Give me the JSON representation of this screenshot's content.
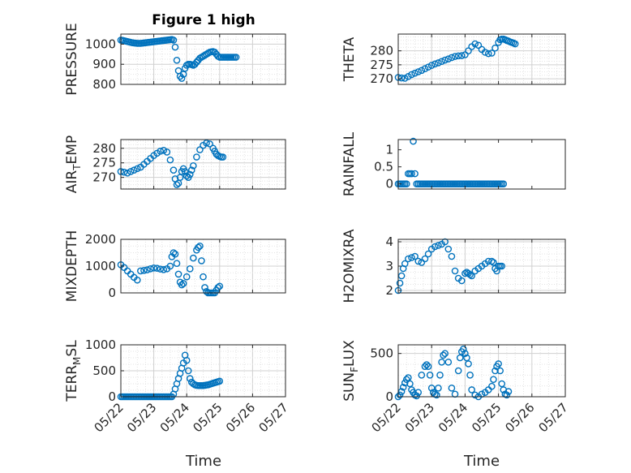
{
  "figure": {
    "title": "Figure 1 high",
    "xlabel": "Time",
    "marker_color": "#0072BD",
    "xticks": [
      "05/22",
      "05/23",
      "05/24",
      "05/25",
      "05/26",
      "05/27"
    ]
  },
  "chart_data": [
    {
      "type": "scatter",
      "ylabel": "PRESSURE",
      "ylim": [
        800,
        1050
      ],
      "yticks": [
        800,
        900,
        1000
      ],
      "grid": true,
      "x": [
        0,
        0.05,
        0.1,
        0.15,
        0.2,
        0.25,
        0.3,
        0.35,
        0.4,
        0.45,
        0.5,
        0.55,
        0.6,
        0.65,
        0.7,
        0.75,
        0.8,
        0.85,
        0.9,
        0.95,
        1.0,
        1.05,
        1.1,
        1.15,
        1.2,
        1.25,
        1.3,
        1.35,
        1.4,
        1.45,
        1.5,
        1.55,
        1.6,
        1.65,
        1.7,
        1.75,
        1.8,
        1.85,
        1.9,
        1.95,
        2.0,
        2.05,
        2.1,
        2.15,
        2.2,
        2.25,
        2.3,
        2.35,
        2.4,
        2.45,
        2.5,
        2.55,
        2.6,
        2.65,
        2.7,
        2.75,
        2.8,
        2.85,
        2.9,
        2.95,
        3.0,
        3.05,
        3.1,
        3.15,
        3.2,
        3.25,
        3.3,
        3.35,
        3.4,
        3.45,
        3.5
      ],
      "y": [
        1020,
        1019,
        1017,
        1015,
        1013,
        1011,
        1009,
        1007,
        1006,
        1005,
        1004,
        1004,
        1004,
        1005,
        1006,
        1007,
        1008,
        1009,
        1010,
        1011,
        1012,
        1013,
        1014,
        1015,
        1016,
        1017,
        1018,
        1019,
        1020,
        1021,
        1022,
        1023,
        1020,
        985,
        920,
        868,
        840,
        830,
        850,
        880,
        895,
        900,
        900,
        898,
        895,
        900,
        910,
        920,
        930,
        935,
        940,
        945,
        950,
        955,
        960,
        962,
        963,
        960,
        950,
        940,
        935,
        935,
        935,
        935,
        935,
        935,
        935,
        935,
        935,
        935,
        935
      ]
    },
    {
      "type": "scatter",
      "ylabel": "THETA",
      "ylim": [
        268,
        286
      ],
      "yticks": [
        270,
        275,
        280
      ],
      "grid": true,
      "x": [
        0,
        0.1,
        0.2,
        0.3,
        0.4,
        0.5,
        0.6,
        0.7,
        0.8,
        0.9,
        1.0,
        1.1,
        1.2,
        1.3,
        1.4,
        1.5,
        1.6,
        1.7,
        1.8,
        1.9,
        2.0,
        2.1,
        2.2,
        2.3,
        2.4,
        2.5,
        2.6,
        2.7,
        2.8,
        2.9,
        3.0,
        3.05,
        3.1,
        3.15,
        3.2,
        3.25,
        3.3,
        3.35,
        3.4,
        3.45,
        3.5
      ],
      "y": [
        270.5,
        270.3,
        270.2,
        270.8,
        271.5,
        272,
        272.5,
        273,
        273.6,
        274.2,
        274.8,
        275.3,
        275.7,
        276.2,
        276.7,
        277.1,
        277.6,
        278,
        278.2,
        278.3,
        278.6,
        280,
        281.5,
        282.5,
        282,
        280.5,
        279.5,
        279,
        279.2,
        281,
        283,
        284,
        284.2,
        284.2,
        284,
        283.7,
        283.5,
        283.2,
        283.0,
        282.8,
        282.5
      ]
    },
    {
      "type": "scatter",
      "ylabel": "AIR_TEMP",
      "ylim": [
        266,
        283
      ],
      "yticks": [
        270,
        275,
        280
      ],
      "grid": true,
      "x": [
        0,
        0.1,
        0.2,
        0.3,
        0.4,
        0.5,
        0.6,
        0.7,
        0.8,
        0.9,
        1.0,
        1.1,
        1.2,
        1.3,
        1.4,
        1.5,
        1.6,
        1.65,
        1.7,
        1.75,
        1.8,
        1.85,
        1.9,
        1.95,
        2.0,
        2.05,
        2.1,
        2.15,
        2.2,
        2.3,
        2.4,
        2.5,
        2.6,
        2.7,
        2.8,
        2.85,
        2.9,
        2.95,
        3.0,
        3.05,
        3.1
      ],
      "y": [
        272,
        271.8,
        271.5,
        272,
        272.5,
        273,
        273.5,
        274.5,
        275.5,
        276.5,
        277.5,
        278.3,
        279,
        279.3,
        278.7,
        276,
        272.5,
        269.5,
        267.5,
        268,
        270,
        272,
        273,
        272,
        270.5,
        270,
        271,
        272.5,
        274,
        277,
        279.5,
        281,
        281.8,
        281.5,
        280,
        279,
        278,
        277.5,
        277.2,
        277,
        277
      ]
    },
    {
      "type": "scatter",
      "ylabel": "RAINFALL",
      "ylim": [
        -0.15,
        1.3
      ],
      "yticks": [
        0,
        0.5,
        1
      ],
      "grid": false,
      "x": [
        0,
        0.05,
        0.1,
        0.15,
        0.2,
        0.25,
        0.3,
        0.35,
        0.4,
        0.45,
        0.5,
        0.55,
        0.6,
        0.65,
        0.7,
        0.75,
        0.8,
        0.85,
        0.9,
        0.95,
        1.0,
        1.05,
        1.1,
        1.15,
        1.2,
        1.25,
        1.3,
        1.35,
        1.4,
        1.45,
        1.5,
        1.55,
        1.6,
        1.65,
        1.7,
        1.75,
        1.8,
        1.85,
        1.9,
        1.95,
        2.0,
        2.05,
        2.1,
        2.15,
        2.2,
        2.25,
        2.3,
        2.35,
        2.4,
        2.45,
        2.5,
        2.55,
        2.6,
        2.65,
        2.7,
        2.75,
        2.8,
        2.85,
        2.9,
        2.95,
        3.0,
        3.05,
        3.1,
        3.15
      ],
      "y": [
        0,
        0,
        0,
        0,
        0,
        0,
        0.3,
        0.3,
        0.3,
        1.25,
        0.3,
        0,
        0,
        0,
        0,
        0,
        0,
        0,
        0,
        0,
        0,
        0,
        0,
        0,
        0,
        0,
        0,
        0,
        0,
        0,
        0,
        0,
        0,
        0,
        0,
        0,
        0,
        0,
        0,
        0,
        0,
        0,
        0,
        0,
        0,
        0,
        0,
        0,
        0,
        0,
        0,
        0,
        0,
        0,
        0,
        0,
        0,
        0,
        0,
        0,
        0,
        0,
        0,
        0
      ]
    },
    {
      "type": "scatter",
      "ylabel": "MIXDEPTH",
      "ylim": [
        0,
        2000
      ],
      "yticks": [
        0,
        1000,
        2000
      ],
      "grid": true,
      "x": [
        0,
        0.1,
        0.2,
        0.3,
        0.4,
        0.5,
        0.6,
        0.7,
        0.8,
        0.9,
        1.0,
        1.1,
        1.2,
        1.3,
        1.4,
        1.5,
        1.55,
        1.6,
        1.65,
        1.7,
        1.75,
        1.8,
        1.85,
        1.9,
        2.0,
        2.1,
        2.2,
        2.3,
        2.35,
        2.4,
        2.45,
        2.5,
        2.55,
        2.6,
        2.65,
        2.7,
        2.75,
        2.8,
        2.85,
        2.9,
        2.95,
        3.0
      ],
      "y": [
        1050,
        950,
        820,
        700,
        580,
        480,
        820,
        840,
        860,
        900,
        930,
        920,
        890,
        870,
        900,
        1000,
        1350,
        1500,
        1450,
        1100,
        700,
        400,
        300,
        350,
        600,
        900,
        1300,
        1600,
        1700,
        1750,
        1200,
        600,
        200,
        50,
        0,
        0,
        0,
        0,
        0,
        100,
        200,
        250
      ]
    },
    {
      "type": "scatter",
      "ylabel": "H2OMIXRA",
      "ylim": [
        1.9,
        4.1
      ],
      "yticks": [
        2,
        3,
        4
      ],
      "grid": true,
      "x": [
        0,
        0.05,
        0.1,
        0.15,
        0.2,
        0.3,
        0.4,
        0.5,
        0.6,
        0.7,
        0.8,
        0.9,
        1.0,
        1.1,
        1.2,
        1.3,
        1.4,
        1.5,
        1.6,
        1.7,
        1.8,
        1.9,
        2.0,
        2.05,
        2.1,
        2.15,
        2.2,
        2.3,
        2.4,
        2.5,
        2.6,
        2.7,
        2.8,
        2.85,
        2.9,
        2.95,
        3.0,
        3.05,
        3.1
      ],
      "y": [
        2.0,
        2.3,
        2.6,
        2.9,
        3.1,
        3.3,
        3.35,
        3.4,
        3.2,
        3.15,
        3.3,
        3.5,
        3.7,
        3.8,
        3.85,
        3.9,
        4.0,
        3.7,
        3.4,
        2.8,
        2.5,
        2.4,
        2.7,
        2.75,
        2.7,
        2.65,
        2.6,
        2.8,
        2.9,
        3.0,
        3.1,
        3.2,
        3.2,
        3.15,
        2.9,
        2.8,
        3.0,
        3.0,
        3.0
      ]
    },
    {
      "type": "scatter",
      "ylabel": "TERR_MSL",
      "ylim": [
        0,
        1000
      ],
      "yticks": [
        0,
        500,
        1000
      ],
      "grid": true,
      "x": [
        0,
        0.05,
        0.1,
        0.15,
        0.2,
        0.25,
        0.3,
        0.35,
        0.4,
        0.45,
        0.5,
        0.55,
        0.6,
        0.65,
        0.7,
        0.75,
        0.8,
        0.85,
        0.9,
        0.95,
        1.0,
        1.05,
        1.1,
        1.15,
        1.2,
        1.25,
        1.3,
        1.35,
        1.4,
        1.45,
        1.5,
        1.55,
        1.6,
        1.65,
        1.7,
        1.75,
        1.8,
        1.85,
        1.9,
        1.95,
        2.0,
        2.05,
        2.1,
        2.15,
        2.2,
        2.25,
        2.3,
        2.35,
        2.4,
        2.45,
        2.5,
        2.55,
        2.6,
        2.65,
        2.7,
        2.75,
        2.8,
        2.85,
        2.9,
        2.95,
        3.0
      ],
      "y": [
        0,
        0,
        0,
        0,
        0,
        0,
        0,
        0,
        0,
        0,
        0,
        0,
        0,
        0,
        0,
        0,
        0,
        0,
        0,
        0,
        0,
        0,
        0,
        0,
        0,
        0,
        0,
        0,
        0,
        0,
        0,
        0,
        50,
        150,
        250,
        350,
        450,
        550,
        650,
        800,
        700,
        500,
        350,
        280,
        250,
        230,
        220,
        215,
        215,
        215,
        215,
        220,
        225,
        230,
        240,
        250,
        260,
        270,
        280,
        290,
        300
      ]
    },
    {
      "type": "scatter",
      "ylabel": "SUN_FLUX",
      "ylim": [
        0,
        600
      ],
      "yticks": [
        0,
        500
      ],
      "grid": true,
      "x": [
        0,
        0.05,
        0.1,
        0.15,
        0.2,
        0.25,
        0.3,
        0.35,
        0.4,
        0.45,
        0.5,
        0.55,
        0.6,
        0.7,
        0.8,
        0.85,
        0.9,
        0.95,
        1.0,
        1.05,
        1.1,
        1.15,
        1.2,
        1.25,
        1.3,
        1.35,
        1.4,
        1.5,
        1.6,
        1.7,
        1.8,
        1.85,
        1.9,
        1.95,
        2.0,
        2.05,
        2.1,
        2.15,
        2.2,
        2.3,
        2.4,
        2.5,
        2.6,
        2.7,
        2.8,
        2.85,
        2.9,
        2.95,
        3.0,
        3.05,
        3.1,
        3.15,
        3.2,
        3.25,
        3.3
      ],
      "y": [
        0,
        20,
        60,
        110,
        160,
        200,
        220,
        150,
        80,
        50,
        20,
        10,
        50,
        250,
        350,
        370,
        350,
        250,
        100,
        50,
        30,
        20,
        100,
        250,
        400,
        480,
        500,
        400,
        100,
        30,
        300,
        450,
        520,
        550,
        500,
        450,
        380,
        250,
        80,
        20,
        0,
        30,
        50,
        80,
        120,
        200,
        300,
        350,
        380,
        300,
        150,
        80,
        30,
        20,
        60
      ]
    }
  ]
}
